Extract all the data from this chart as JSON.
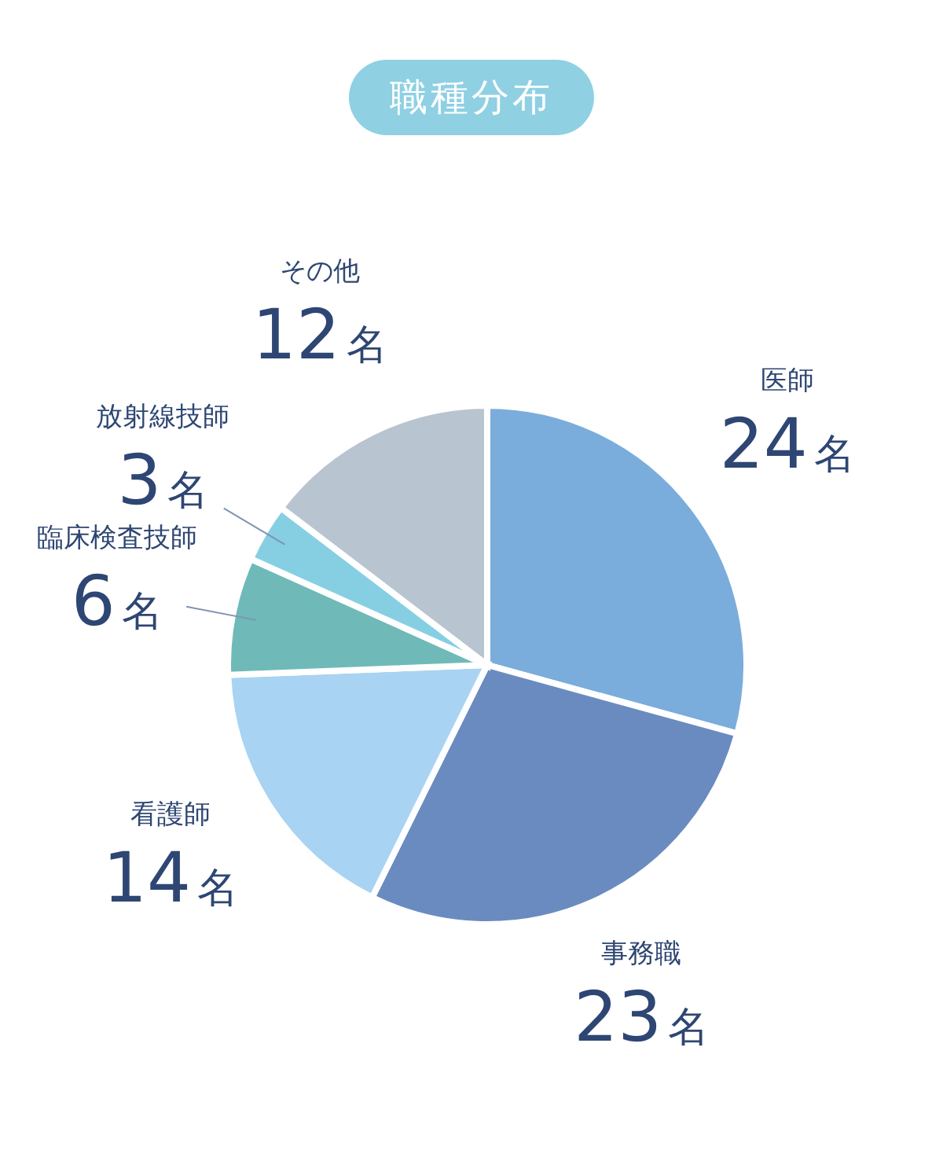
{
  "chart_data": {
    "type": "pie",
    "title": "職種分布",
    "categories": [
      "医師",
      "事務職",
      "看護師",
      "臨床検査技師",
      "放射線技師",
      "その他"
    ],
    "values": [
      24,
      23,
      14,
      6,
      3,
      12
    ],
    "value_labels": [
      "24名",
      "23名",
      "14名",
      "6名",
      "3名",
      "12名"
    ],
    "colors": [
      "#7aaddb",
      "#6a8bc0",
      "#a9d3f2",
      "#6fbab8",
      "#86cfe3",
      "#b8c4d0"
    ],
    "legend": false
  }
}
